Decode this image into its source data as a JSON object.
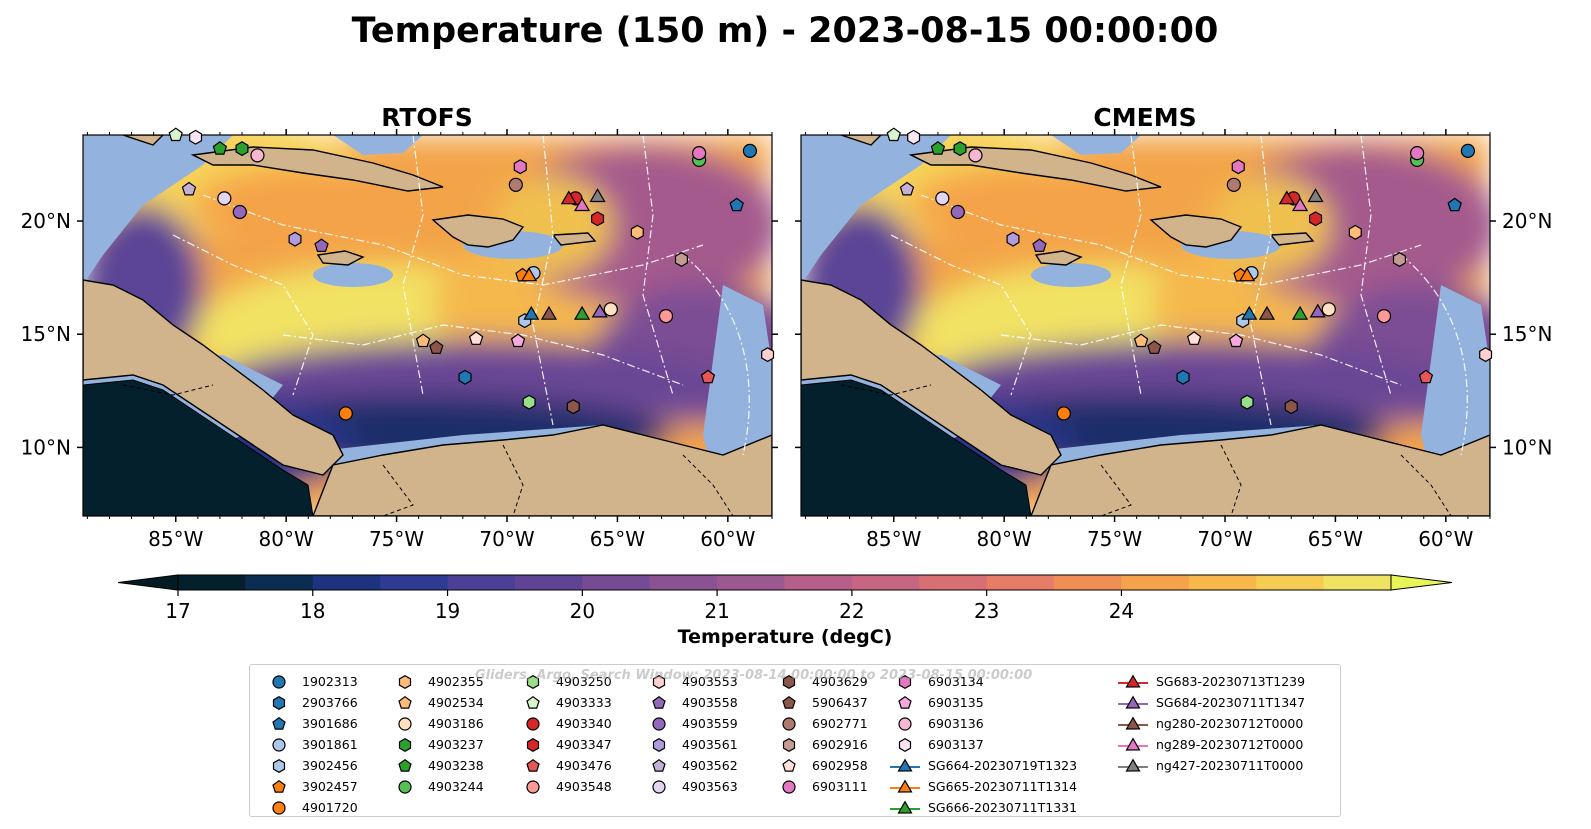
{
  "title": "Temperature (150 m) - 2023-08-15 00:00:00",
  "panels": [
    {
      "id": "rtofs",
      "title": "RTOFS"
    },
    {
      "id": "cmems",
      "title": "CMEMS"
    }
  ],
  "x_ticks": [
    "85°W",
    "80°W",
    "75°W",
    "70°W",
    "65°W",
    "60°W"
  ],
  "y_ticks": [
    "20°N",
    "15°N",
    "10°N"
  ],
  "colorbar": {
    "label": "Temperature (degC)",
    "ticks": [
      "17",
      "18",
      "19",
      "20",
      "21",
      "22",
      "23",
      "24"
    ],
    "colors": [
      "#04202c",
      "#0b2d52",
      "#1e3380",
      "#2f3a93",
      "#4b3f97",
      "#5f4496",
      "#764b95",
      "#8a5292",
      "#9e5890",
      "#b65f8b",
      "#c76683",
      "#d86f75",
      "#e67d66",
      "#f08f55",
      "#f5a34a",
      "#f8b74a",
      "#f6cd52",
      "#f0e364"
    ],
    "over_color": "#e8f558",
    "under_color": "#041a24"
  },
  "watermark": "Gliders, Argo, Search Window: 2023-08-14 00:00:00 to 2023-08-15 00:00:00",
  "legend": [
    {
      "label": "1902313",
      "marker": "circle",
      "color": "#1f77b4"
    },
    {
      "label": "2903766",
      "marker": "hexagon",
      "color": "#1f77b4"
    },
    {
      "label": "3901686",
      "marker": "pentagon",
      "color": "#1f77b4"
    },
    {
      "label": "3901861",
      "marker": "circle",
      "color": "#aec7e8"
    },
    {
      "label": "3902456",
      "marker": "hexagon",
      "color": "#aec7e8"
    },
    {
      "label": "3902457",
      "marker": "pentagon",
      "color": "#ff7f0e"
    },
    {
      "label": "4901720",
      "marker": "circle",
      "color": "#ff7f0e"
    },
    {
      "label": "4902355",
      "marker": "hexagon",
      "color": "#ffbb78"
    },
    {
      "label": "4902534",
      "marker": "pentagon",
      "color": "#ffbb78"
    },
    {
      "label": "4903186",
      "marker": "circle",
      "color": "#ffe0c0"
    },
    {
      "label": "4903237",
      "marker": "hexagon",
      "color": "#2ca02c"
    },
    {
      "label": "4903238",
      "marker": "pentagon",
      "color": "#2ca02c"
    },
    {
      "label": "4903244",
      "marker": "circle",
      "color": "#55c055"
    },
    {
      "label": "4903250",
      "marker": "hexagon",
      "color": "#98df8a"
    },
    {
      "label": "4903333",
      "marker": "pentagon",
      "color": "#d8f5d0"
    },
    {
      "label": "4903340",
      "marker": "circle",
      "color": "#d62728"
    },
    {
      "label": "4903347",
      "marker": "hexagon",
      "color": "#d62728"
    },
    {
      "label": "4903476",
      "marker": "pentagon",
      "color": "#e45756"
    },
    {
      "label": "4903548",
      "marker": "circle",
      "color": "#ff9896"
    },
    {
      "label": "4903553",
      "marker": "hexagon",
      "color": "#ffd0cf"
    },
    {
      "label": "4903558",
      "marker": "pentagon",
      "color": "#9467bd"
    },
    {
      "label": "4903559",
      "marker": "circle",
      "color": "#9467bd"
    },
    {
      "label": "4903561",
      "marker": "hexagon",
      "color": "#b09bdc"
    },
    {
      "label": "4903562",
      "marker": "pentagon",
      "color": "#c5b0d5"
    },
    {
      "label": "4903563",
      "marker": "circle",
      "color": "#e2d5f0"
    },
    {
      "label": "4903629",
      "marker": "hexagon",
      "color": "#8c564b"
    },
    {
      "label": "5906437",
      "marker": "pentagon",
      "color": "#8c564b"
    },
    {
      "label": "6902771",
      "marker": "circle",
      "color": "#b07a6e"
    },
    {
      "label": "6902916",
      "marker": "hexagon",
      "color": "#c49c94"
    },
    {
      "label": "6902958",
      "marker": "pentagon",
      "color": "#ffe0d8"
    },
    {
      "label": "6903111",
      "marker": "circle",
      "color": "#e377c2"
    },
    {
      "label": "6903134",
      "marker": "hexagon",
      "color": "#e377c2"
    },
    {
      "label": "6903135",
      "marker": "pentagon",
      "color": "#f7a8dc"
    },
    {
      "label": "6903136",
      "marker": "circle",
      "color": "#f7b6d2"
    },
    {
      "label": "6903137",
      "marker": "hexagon",
      "color": "#fde4f2"
    },
    {
      "label": "SG664-20230719T1323",
      "marker": "triangle-line",
      "color": "#1f77b4"
    },
    {
      "label": "SG665-20230711T1314",
      "marker": "triangle-line",
      "color": "#ff7f0e"
    },
    {
      "label": "SG666-20230711T1331",
      "marker": "triangle-line",
      "color": "#2ca02c"
    },
    {
      "label": "SG683-20230713T1239",
      "marker": "triangle-line",
      "color": "#d62728"
    },
    {
      "label": "SG684-20230711T1347",
      "marker": "triangle-line",
      "color": "#9467bd"
    },
    {
      "label": "ng280-20230712T0000",
      "marker": "triangle-line",
      "color": "#8c564b"
    },
    {
      "label": "ng289-20230712T0000",
      "marker": "triangle-line",
      "color": "#e377c2"
    },
    {
      "label": "ng427-20230711T0000",
      "marker": "triangle-line",
      "color": "#7f7f7f"
    }
  ],
  "map_points": [
    {
      "label": "1902313",
      "lon": -59.0,
      "lat": 23.1
    },
    {
      "label": "2903766",
      "lon": -71.9,
      "lat": 13.1
    },
    {
      "label": "3901686",
      "lon": -59.6,
      "lat": 20.7
    },
    {
      "label": "3901861",
      "lon": -68.8,
      "lat": 17.7
    },
    {
      "label": "3902456",
      "lon": -69.2,
      "lat": 15.6
    },
    {
      "label": "3902457",
      "lon": -69.3,
      "lat": 17.6
    },
    {
      "label": "4901720",
      "lon": -77.3,
      "lat": 11.5
    },
    {
      "label": "4902355",
      "lon": -64.1,
      "lat": 19.5
    },
    {
      "label": "4902534",
      "lon": -73.8,
      "lat": 14.7
    },
    {
      "label": "4903186",
      "lon": -65.3,
      "lat": 16.1
    },
    {
      "label": "4903237",
      "lon": -82.0,
      "lat": 23.2
    },
    {
      "label": "4903238",
      "lon": -83.0,
      "lat": 23.2
    },
    {
      "label": "4903244",
      "lon": -61.3,
      "lat": 22.7
    },
    {
      "label": "4903250",
      "lon": -69.0,
      "lat": 12.0
    },
    {
      "label": "4903333",
      "lon": -85.0,
      "lat": 23.8
    },
    {
      "label": "4903340",
      "lon": -66.9,
      "lat": 21.0
    },
    {
      "label": "4903347",
      "lon": -65.9,
      "lat": 20.1
    },
    {
      "label": "4903476",
      "lon": -60.9,
      "lat": 13.1
    },
    {
      "label": "4903548",
      "lon": -62.8,
      "lat": 15.8
    },
    {
      "label": "4903553",
      "lon": -58.2,
      "lat": 14.1
    },
    {
      "label": "4903558",
      "lon": -78.4,
      "lat": 18.9
    },
    {
      "label": "4903559",
      "lon": -82.1,
      "lat": 20.4
    },
    {
      "label": "4903561",
      "lon": -79.6,
      "lat": 19.2
    },
    {
      "label": "4903562",
      "lon": -84.4,
      "lat": 21.4
    },
    {
      "label": "4903563",
      "lon": -82.8,
      "lat": 21.0
    },
    {
      "label": "4903629",
      "lon": -67.0,
      "lat": 11.8
    },
    {
      "label": "5906437",
      "lon": -73.2,
      "lat": 14.4
    },
    {
      "label": "6902771",
      "lon": -69.6,
      "lat": 21.6
    },
    {
      "label": "6902916",
      "lon": -62.1,
      "lat": 18.3
    },
    {
      "label": "6902958",
      "lon": -71.4,
      "lat": 14.8
    },
    {
      "label": "6903111",
      "lon": -61.3,
      "lat": 23.0
    },
    {
      "label": "6903134",
      "lon": -69.4,
      "lat": 22.4
    },
    {
      "label": "6903135",
      "lon": -69.5,
      "lat": 14.7
    },
    {
      "label": "6903136",
      "lon": -81.3,
      "lat": 22.9
    },
    {
      "label": "6903137",
      "lon": -84.1,
      "lat": 23.7
    },
    {
      "label": "SG664-20230719T1323",
      "lon": -68.9,
      "lat": 15.9
    },
    {
      "label": "SG665-20230711T1314",
      "lon": -69.0,
      "lat": 17.6
    },
    {
      "label": "SG666-20230711T1331",
      "lon": -66.6,
      "lat": 15.9
    },
    {
      "label": "SG683-20230713T1239",
      "lon": -67.2,
      "lat": 21.0
    },
    {
      "label": "SG684-20230711T1347",
      "lon": -65.8,
      "lat": 16.0
    },
    {
      "label": "ng280-20230712T0000",
      "lon": -68.1,
      "lat": 15.9
    },
    {
      "label": "ng289-20230712T0000",
      "lon": -66.6,
      "lat": 20.7
    },
    {
      "label": "ng427-20230711T0000",
      "lon": -65.9,
      "lat": 21.1
    }
  ]
}
